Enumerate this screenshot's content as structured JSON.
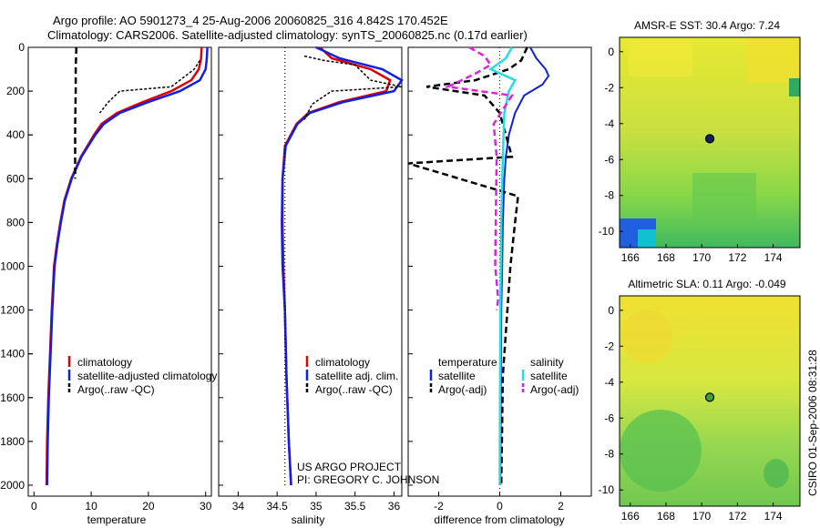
{
  "header": {
    "line1": "Argo profile: AO 5901273_4 25-Aug-2006 20060825_316 4.842S 170.452E",
    "line2": "Climatology: CARS2006. Satellite-adjusted climatology: synTS_20060825.nc (0.17d earlier)"
  },
  "credit": "US ARGO PROJECT",
  "pi": "PI: GREGORY C. JOHNSON",
  "stamp": "CSIRO 01-Sep-2006 08:31:28",
  "colors": {
    "climatology": "#e00000",
    "satellite": "#1020e0",
    "argo": "#000000",
    "sal_satellite": "#20e0e0",
    "sal_argo": "#e020e0"
  },
  "chart_data": [
    {
      "type": "line",
      "id": "temperature",
      "xlabel": "temperature",
      "ylabel": "",
      "xlim": [
        -1,
        31
      ],
      "ylim": [
        0,
        2050
      ],
      "yticks": [
        0,
        200,
        400,
        600,
        800,
        1000,
        1200,
        1400,
        1600,
        1800,
        2000
      ],
      "xticks": [
        0,
        10,
        20,
        30
      ],
      "legend": [
        "climatology",
        "satellite-adjusted climatology",
        "Argo(..raw -QC)"
      ],
      "series": [
        {
          "name": "climatology",
          "x": [
            29.3,
            29.2,
            28.8,
            27.5,
            24.0,
            19.0,
            14.5,
            11.8,
            10.5,
            8.2,
            6.5,
            5.3,
            4.6,
            4.0,
            3.5,
            3.1,
            2.8,
            2.5,
            2.3,
            2.2
          ],
          "y": [
            0,
            50,
            100,
            150,
            200,
            250,
            300,
            350,
            400,
            500,
            600,
            700,
            800,
            900,
            1000,
            1200,
            1400,
            1600,
            1800,
            2000
          ]
        },
        {
          "name": "satellite-adjusted climatology",
          "x": [
            30.3,
            30.2,
            30.0,
            29.0,
            25.5,
            20.0,
            15.0,
            12.2,
            10.7,
            8.3,
            6.6,
            5.4,
            4.7,
            4.1,
            3.6,
            3.2,
            2.9,
            2.6,
            2.4,
            2.3
          ],
          "y": [
            0,
            50,
            100,
            150,
            200,
            250,
            300,
            350,
            400,
            500,
            600,
            700,
            800,
            900,
            1000,
            1200,
            1400,
            1600,
            1800,
            2000
          ]
        },
        {
          "name": "Argo(..raw -QC)",
          "x": [
            7.4,
            7.3,
            7.3,
            7.2,
            7.2,
            7.2
          ],
          "y": [
            0,
            100,
            200,
            350,
            500,
            600
          ]
        },
        {
          "name": "Argo upper",
          "x": [
            29.0,
            28.0,
            24.0,
            15.0,
            13.0,
            11.5
          ],
          "y": [
            60,
            100,
            180,
            200,
            250,
            300
          ]
        }
      ]
    },
    {
      "type": "line",
      "id": "salinity",
      "xlabel": "salinity",
      "ylabel": "",
      "xlim": [
        33.75,
        36.1
      ],
      "ylim": [
        0,
        2050
      ],
      "xticks": [
        34,
        34.5,
        35,
        35.5,
        36
      ],
      "legend": [
        "climatology",
        "satellite adj. clim.",
        "Argo(..raw -QC)"
      ],
      "series": [
        {
          "name": "climatology",
          "x": [
            35.05,
            35.2,
            35.7,
            35.95,
            35.9,
            35.3,
            34.9,
            34.75,
            34.6,
            34.57,
            34.57,
            34.58,
            34.6,
            34.62,
            34.65,
            34.68
          ],
          "y": [
            0,
            50,
            100,
            150,
            200,
            250,
            300,
            350,
            450,
            600,
            800,
            1000,
            1200,
            1500,
            1800,
            2000
          ]
        },
        {
          "name": "satellite adj. clim.",
          "x": [
            35.0,
            35.3,
            35.85,
            36.1,
            36.0,
            35.35,
            34.92,
            34.76,
            34.61,
            34.57,
            34.56,
            34.57,
            34.6,
            34.62,
            34.65,
            34.68
          ],
          "y": [
            0,
            50,
            100,
            150,
            200,
            250,
            300,
            350,
            450,
            600,
            800,
            1000,
            1200,
            1500,
            1800,
            2000
          ]
        },
        {
          "name": "Argo(..raw -QC)",
          "x": [
            34.6,
            34.6,
            34.6,
            34.6,
            34.6,
            34.6
          ],
          "y": [
            0,
            400,
            800,
            1200,
            1600,
            2000
          ]
        },
        {
          "name": "Argo upper",
          "x": [
            34.85,
            35.1,
            35.5,
            35.7,
            36.1,
            35.2,
            34.95,
            34.85
          ],
          "y": [
            40,
            60,
            80,
            150,
            180,
            200,
            260,
            330
          ]
        }
      ]
    },
    {
      "type": "line",
      "id": "difference",
      "xlabel": "difference from climatology",
      "ylabel": "",
      "xlim": [
        -3.0,
        3.0
      ],
      "ylim": [
        0,
        2050
      ],
      "xticks": [
        -2,
        0,
        2
      ],
      "legend_temperature": {
        "header": "temperature",
        "items": [
          "satellite",
          "Argo(-adj)"
        ]
      },
      "legend_salinity": {
        "header": "salinity",
        "items": [
          "satellite",
          "Argo(-adj)"
        ]
      },
      "series": [
        {
          "name": "temperature satellite",
          "x": [
            1.0,
            1.2,
            1.5,
            1.6,
            1.4,
            0.8,
            0.5,
            0.3,
            0.2,
            0.15,
            0.1,
            0.08,
            0.05,
            0.04,
            0.03,
            0.02
          ],
          "y": [
            0,
            50,
            100,
            130,
            170,
            220,
            300,
            400,
            500,
            600,
            800,
            1000,
            1200,
            1500,
            1800,
            2000
          ]
        },
        {
          "name": "temperature Argo(-adj)",
          "x": [
            0.9,
            0.7,
            0.3,
            -0.8,
            -2.4,
            -0.5,
            0.0,
            0.2,
            0.4,
            -3.0,
            0.6,
            0.5,
            0.35,
            0.25,
            0.1,
            0.05
          ],
          "y": [
            0,
            60,
            100,
            150,
            180,
            220,
            300,
            400,
            500,
            530,
            680,
            800,
            1000,
            1200,
            1500,
            2000
          ]
        },
        {
          "name": "salinity satellite",
          "x": [
            0.4,
            0.2,
            -0.3,
            0.5,
            0.3,
            0.15,
            0.1,
            0.05,
            0.02,
            0.01,
            0.0
          ],
          "y": [
            0,
            50,
            100,
            150,
            200,
            300,
            500,
            800,
            1200,
            1600,
            2000
          ]
        },
        {
          "name": "salinity Argo(-adj)",
          "x": [
            -1.0,
            -0.5,
            -0.3,
            -0.8,
            -1.7,
            0.4,
            -0.2,
            -0.1,
            -0.15,
            -0.05,
            -0.1
          ],
          "y": [
            0,
            40,
            80,
            120,
            180,
            220,
            350,
            500,
            1000,
            1150,
            1200
          ]
        }
      ]
    },
    {
      "type": "heatmap",
      "id": "sst_map",
      "title": "AMSR-E SST: 30.4  Argo: 7.24",
      "xticks": [
        166,
        168,
        170,
        172,
        174
      ],
      "yticks": [
        0,
        -2,
        -4,
        -6,
        -8,
        -10
      ],
      "xlim": [
        165.4,
        175.5
      ],
      "ylim": [
        -10.9,
        0.8
      ],
      "marker": {
        "x": 170.452,
        "y": -4.842
      }
    },
    {
      "type": "heatmap",
      "id": "sla_map",
      "title": "Altimetric SLA: 0.11  Argo: -0.049",
      "xticks": [
        166,
        168,
        170,
        172,
        174
      ],
      "yticks": [
        0,
        -2,
        -4,
        -6,
        -8,
        -10
      ],
      "xlim": [
        165.4,
        175.5
      ],
      "ylim": [
        -10.9,
        0.8
      ],
      "marker": {
        "x": 170.452,
        "y": -4.842
      }
    }
  ]
}
